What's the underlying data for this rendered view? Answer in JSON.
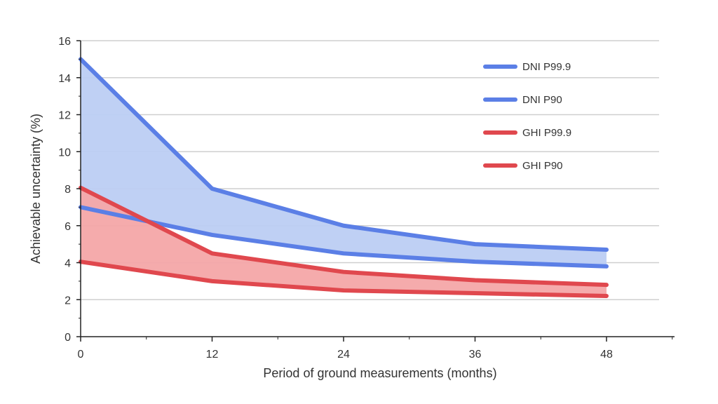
{
  "chart_data": {
    "type": "line",
    "title": "",
    "xlabel": "Period of ground measurements (months)",
    "ylabel": "Achievable uncertainty (%)",
    "x": [
      0,
      12,
      24,
      36,
      48
    ],
    "xlim": [
      0,
      54
    ],
    "ylim": [
      0,
      16
    ],
    "xticks": [
      "0",
      "12",
      "24",
      "36",
      "48"
    ],
    "yticks": [
      "0",
      "2",
      "4",
      "6",
      "8",
      "10",
      "12",
      "14",
      "16"
    ],
    "grid": true,
    "legend_position": "top-right",
    "series": [
      {
        "name": "DNI P99.9",
        "values": [
          15,
          8,
          6,
          5,
          4.7
        ],
        "color": "#5b7fe6"
      },
      {
        "name": "DNI P90",
        "values": [
          7,
          5.5,
          4.5,
          4.05,
          3.8
        ],
        "color": "#5b7fe6"
      },
      {
        "name": "GHI P99.9",
        "values": [
          8.05,
          4.5,
          3.5,
          3.05,
          2.8
        ],
        "color": "#e0484e"
      },
      {
        "name": "GHI P90",
        "values": [
          4.05,
          3.0,
          2.5,
          2.35,
          2.2
        ],
        "color": "#e0484e"
      }
    ],
    "bands": [
      {
        "upper": "DNI P99.9",
        "lower": "DNI P90",
        "color": "#bccdf3"
      },
      {
        "upper": "GHI P99.9",
        "lower": "GHI P90",
        "color": "#f4a6a8"
      }
    ]
  }
}
